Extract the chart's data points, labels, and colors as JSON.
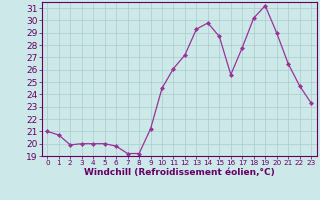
{
  "x": [
    0,
    1,
    2,
    3,
    4,
    5,
    6,
    7,
    8,
    9,
    10,
    11,
    12,
    13,
    14,
    15,
    16,
    17,
    18,
    19,
    20,
    21,
    22,
    23
  ],
  "y": [
    21.0,
    20.7,
    19.9,
    20.0,
    20.0,
    20.0,
    19.8,
    19.2,
    19.2,
    21.2,
    24.5,
    26.1,
    27.2,
    29.3,
    29.8,
    28.7,
    25.6,
    27.8,
    30.2,
    31.2,
    29.0,
    26.5,
    24.7,
    23.3
  ],
  "line_color": "#993399",
  "marker": "D",
  "marker_size": 2,
  "bg_color": "#cce8e8",
  "grid_color": "#aacccc",
  "xlabel": "Windchill (Refroidissement éolien,°C)",
  "ylim": [
    19,
    31.5
  ],
  "xlim": [
    -0.5,
    23.5
  ],
  "yticks": [
    19,
    20,
    21,
    22,
    23,
    24,
    25,
    26,
    27,
    28,
    29,
    30,
    31
  ],
  "xticks": [
    0,
    1,
    2,
    3,
    4,
    5,
    6,
    7,
    8,
    9,
    10,
    11,
    12,
    13,
    14,
    15,
    16,
    17,
    18,
    19,
    20,
    21,
    22,
    23
  ],
  "tick_color": "#660066",
  "label_color": "#660066",
  "ytick_fontsize": 6.5,
  "xtick_fontsize": 5.2,
  "xlabel_fontsize": 6.5
}
